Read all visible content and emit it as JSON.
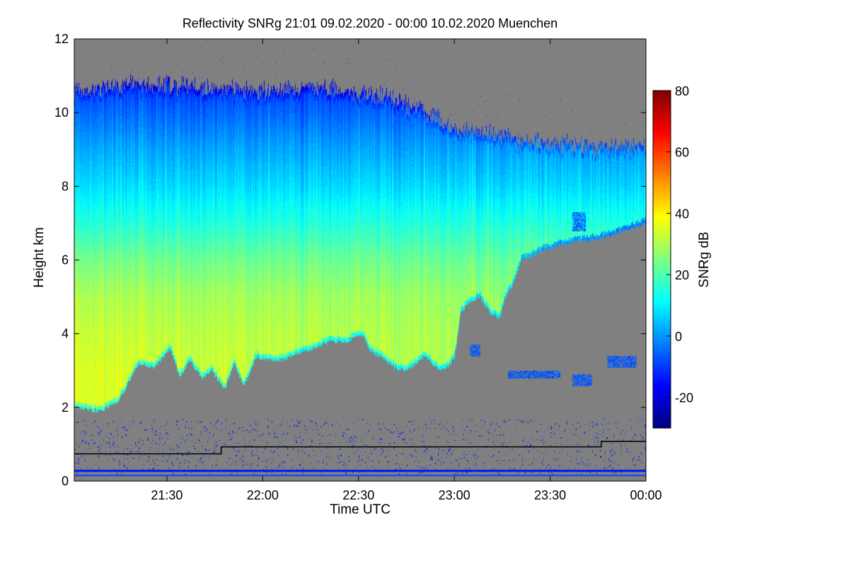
{
  "chart_data": {
    "type": "heatmap",
    "title": "Reflectivity SNRg   21:01 09.02.2020 - 00:00 10.02.2020 Muenchen",
    "xlabel": "Time UTC",
    "ylabel": "Height km",
    "colorbar_label": "SNRg dB",
    "x_range": [
      "21:01",
      "00:00"
    ],
    "x_ticks": [
      "21:30",
      "22:00",
      "22:30",
      "23:00",
      "23:30",
      "00:00"
    ],
    "x_tick_minutes": [
      29,
      59,
      89,
      119,
      149,
      179
    ],
    "x_total_minutes": 179,
    "ylim": [
      0,
      12
    ],
    "y_ticks": [
      "0",
      "2",
      "4",
      "6",
      "8",
      "10",
      "12"
    ],
    "colorbar_range": [
      -30,
      80
    ],
    "colorbar_ticks": [
      "-20",
      "0",
      "20",
      "40",
      "60",
      "80"
    ],
    "colorbar_tick_values": [
      -20,
      0,
      20,
      40,
      60,
      80
    ],
    "background_color": "#808080",
    "colormap": [
      "#00007f",
      "#0000ff",
      "#007fff",
      "#00ffff",
      "#7fff7f",
      "#ffff00",
      "#ff7f00",
      "#ff0000",
      "#7f0000"
    ],
    "cloud_top_km": {
      "minutes": [
        0,
        20,
        40,
        60,
        80,
        90,
        100,
        110,
        120,
        135,
        145,
        160,
        179
      ],
      "height": [
        10.6,
        10.8,
        10.7,
        10.6,
        10.7,
        10.5,
        10.4,
        10.0,
        9.5,
        9.4,
        9.2,
        9.1,
        9.1
      ]
    },
    "cloud_base_km": {
      "minutes": [
        0,
        8,
        14,
        20,
        25,
        30,
        33,
        36,
        40,
        43,
        47,
        50,
        53,
        57,
        60,
        65,
        70,
        75,
        80,
        85,
        90,
        93,
        96,
        100,
        104,
        107,
        110,
        113,
        116,
        119,
        121,
        124,
        127,
        130,
        133,
        135,
        137,
        140,
        145,
        152,
        158,
        165,
        172,
        179
      ],
      "height": [
        2.0,
        1.9,
        2.2,
        3.2,
        3.1,
        3.6,
        2.8,
        3.3,
        2.8,
        3.0,
        2.5,
        3.2,
        2.6,
        3.4,
        3.3,
        3.3,
        3.5,
        3.6,
        3.8,
        3.8,
        4.0,
        3.5,
        3.4,
        3.1,
        3.0,
        3.2,
        3.4,
        3.1,
        3.0,
        3.4,
        4.6,
        4.9,
        5.0,
        4.6,
        4.4,
        5.0,
        5.3,
        6.0,
        6.2,
        6.4,
        6.5,
        6.6,
        6.8,
        7.0
      ]
    },
    "snr_profile_db": {
      "height_km": [
        0,
        1.5,
        2.0,
        2.5,
        3.0,
        4.0,
        5.0,
        6.0,
        7.0,
        8.0,
        9.0,
        10.0,
        11.0
      ],
      "early_period": [
        35,
        35,
        35,
        35,
        35,
        33,
        30,
        24,
        15,
        8,
        2,
        -5,
        -12
      ],
      "late_period": [
        28,
        28,
        28,
        28,
        28,
        28,
        27,
        22,
        15,
        7,
        1,
        -6,
        -12
      ]
    },
    "ground_bands_km": [
      0.17,
      0.3
    ],
    "ground_band_snr_db": [
      -8,
      -14
    ],
    "black_line_km": {
      "minutes": [
        0,
        46,
        46,
        165,
        165,
        179
      ],
      "height": [
        0.74,
        0.74,
        0.93,
        0.93,
        1.08,
        1.08
      ]
    },
    "isolated_echoes": [
      {
        "minute_start": 124,
        "minute_end": 127,
        "height_low": 3.4,
        "height_high": 3.7
      },
      {
        "minute_start": 136,
        "minute_end": 152,
        "height_low": 2.8,
        "height_high": 3.0
      },
      {
        "minute_start": 156,
        "minute_end": 162,
        "height_low": 2.6,
        "height_high": 2.9
      },
      {
        "minute_start": 167,
        "minute_end": 176,
        "height_low": 3.1,
        "height_high": 3.4
      },
      {
        "minute_start": 156,
        "minute_end": 160,
        "height_low": 6.8,
        "height_high": 7.3
      }
    ]
  }
}
